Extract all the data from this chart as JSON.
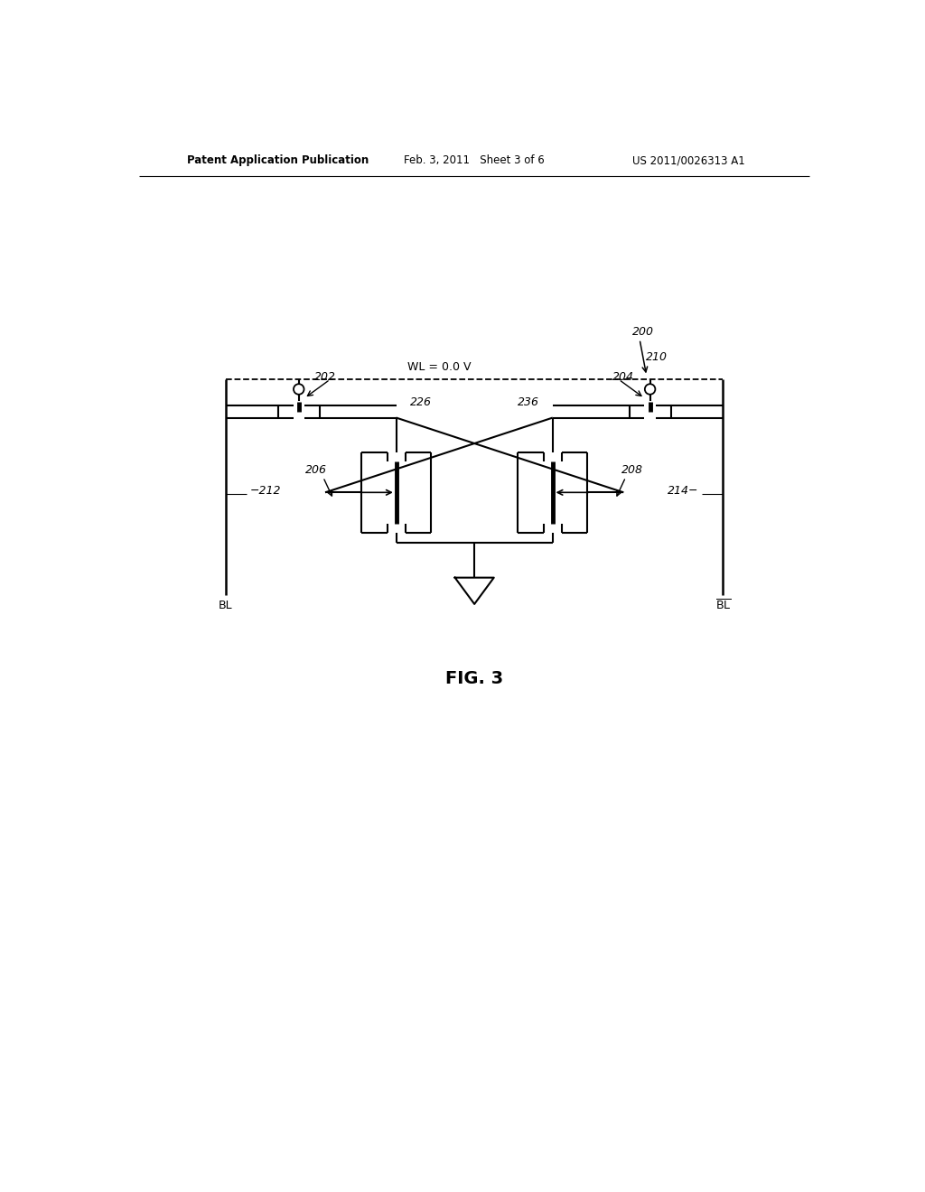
{
  "title_left": "Patent Application Publication",
  "title_mid": "Feb. 3, 2011   Sheet 3 of 6",
  "title_right": "US 2011/0026313 A1",
  "fig_label": "FIG. 3",
  "background": "#ffffff",
  "label_200": "200",
  "label_202": "202",
  "label_204": "204",
  "label_206": "206",
  "label_208": "208",
  "label_210": "210",
  "label_212": "212",
  "label_214": "214",
  "label_226": "226",
  "label_236": "236",
  "wl_label": "WL = 0.0 V",
  "bl_left": "BL",
  "bl_right_bar": "BL"
}
